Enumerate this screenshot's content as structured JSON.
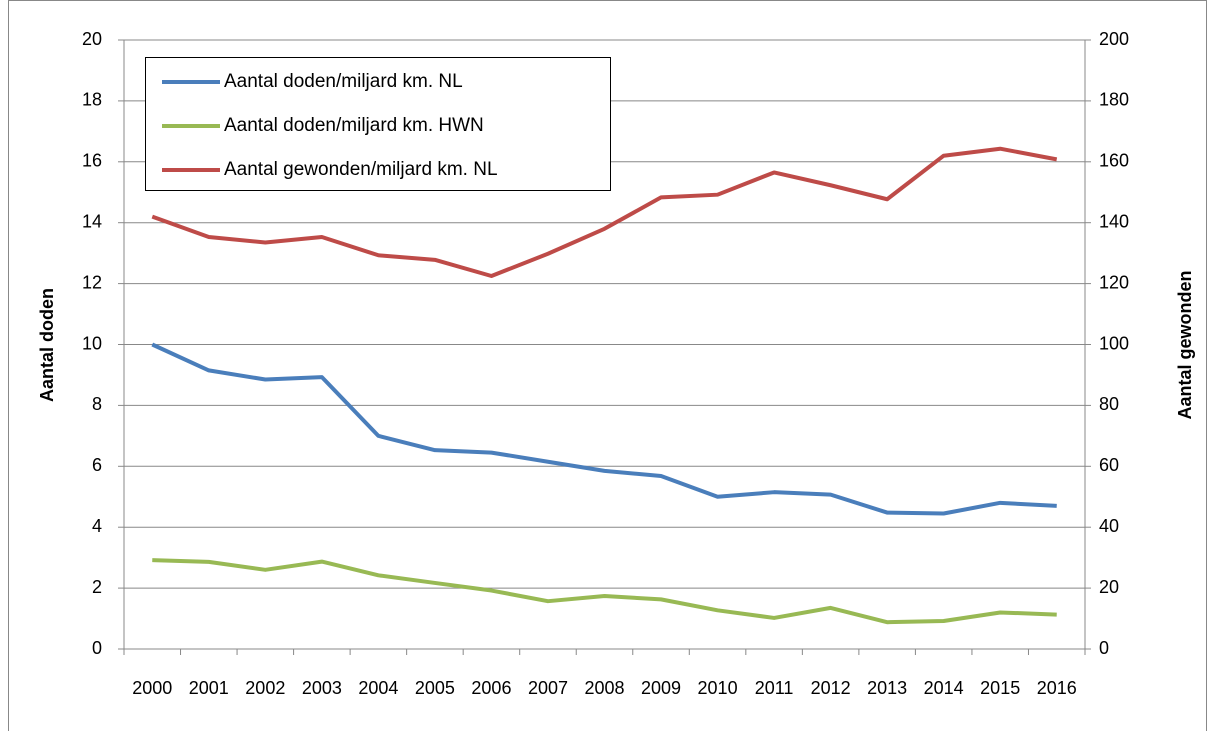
{
  "chart_data": {
    "type": "line",
    "categories": [
      "2000",
      "2001",
      "2002",
      "2003",
      "2004",
      "2005",
      "2006",
      "2007",
      "2008",
      "2009",
      "2010",
      "2011",
      "2012",
      "2013",
      "2014",
      "2015",
      "2016"
    ],
    "series": [
      {
        "name": "Aantal doden/miljard km. NL",
        "color": "#4a7ebb",
        "values": [
          10.0,
          9.15,
          8.85,
          8.93,
          7.0,
          6.53,
          6.45,
          6.15,
          5.85,
          5.68,
          5.0,
          5.15,
          5.07,
          4.48,
          4.45,
          4.8,
          4.7
        ]
      },
      {
        "name": "Aantal doden/miljard km. HWN",
        "color": "#98b954",
        "values": [
          2.92,
          2.86,
          2.6,
          2.87,
          2.42,
          2.17,
          1.92,
          1.57,
          1.74,
          1.63,
          1.27,
          1.02,
          1.35,
          0.88,
          0.92,
          1.2,
          1.13
        ]
      },
      {
        "name": "Aantal gewonden/miljard km. NL",
        "color": "#be4b48",
        "axis": "y2",
        "values": [
          142,
          135.3,
          133.5,
          135.3,
          129.3,
          127.8,
          122.5,
          129.8,
          138,
          148.3,
          149.2,
          156.5,
          152.3,
          147.7,
          162,
          164.3,
          160.8
        ]
      }
    ],
    "y_label": "Aantal doden",
    "y2_label": "Aantal gewonden",
    "ylim": [
      0,
      20
    ],
    "yticks": [
      0,
      2,
      4,
      6,
      8,
      10,
      12,
      14,
      16,
      18,
      20
    ],
    "y2lim": [
      0,
      200
    ],
    "y2ticks": [
      0,
      20,
      40,
      60,
      80,
      100,
      120,
      140,
      160,
      180,
      200
    ],
    "grid": true,
    "legend": "upper left"
  }
}
